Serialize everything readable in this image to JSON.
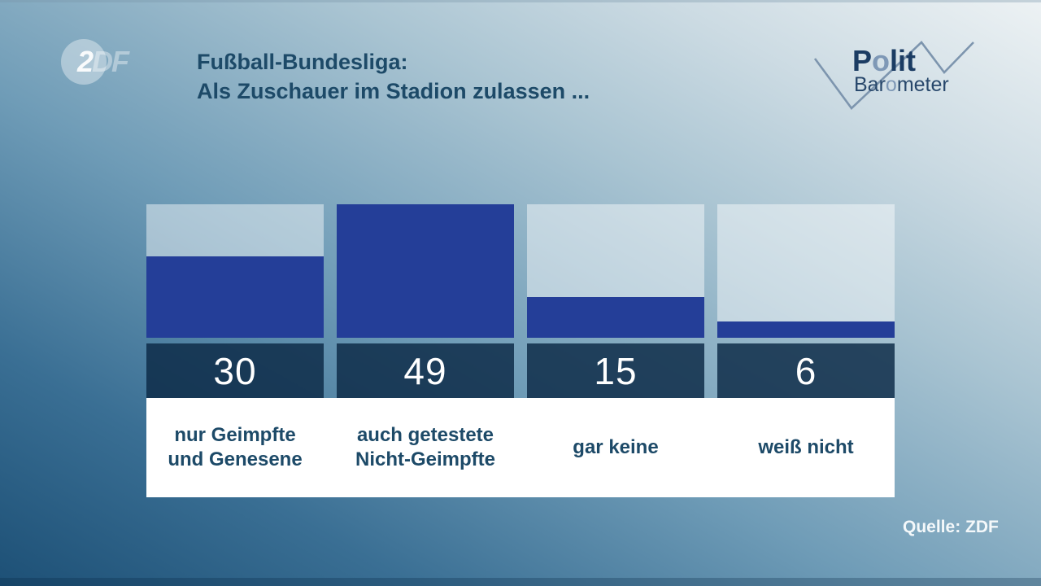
{
  "header": {
    "title_line1": "Fußball-Bundesliga:",
    "title_line2": "Als Zuschauer im Stadion zulassen ..."
  },
  "zdf_logo": {
    "lead": "2",
    "ghost": "DF"
  },
  "politbarometer_logo": {
    "polit_p": "P",
    "polit_o": "o",
    "polit_rest": "lit",
    "baro_pre": "Bar",
    "baro_o": "o",
    "baro_rest": "meter"
  },
  "source": {
    "label": "Quelle: ZDF"
  },
  "chart_data": {
    "type": "bar",
    "title": "Fußball-Bundesliga: Als Zuschauer im Stadion zulassen ...",
    "categories": [
      "nur Geimpfte\nund Genesene",
      "auch getestete\nNicht-Geimpfte",
      "gar keine",
      "weiß nicht"
    ],
    "values": [
      30,
      49,
      15,
      6
    ],
    "unit": "percent",
    "scale_max": 49,
    "orientation": "vertical",
    "grid": false,
    "legend": "none",
    "colors": {
      "bar_fill": "#243e98",
      "bar_empty_overlay": "rgba(255,255,255,0.45)",
      "value_band_bg": "#1e3f5b",
      "value_text": "#ffffff",
      "label_text": "#1d4a68",
      "label_band_bg": "#ffffff",
      "headline_text": "#1d4a68",
      "logo_dark": "#1b3c63",
      "logo_light": "#7e98b6",
      "zigzag_stroke": "#7d95ae"
    }
  }
}
